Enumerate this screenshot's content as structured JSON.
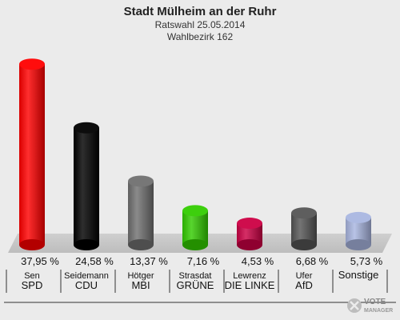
{
  "header": {
    "title": "Stadt Mülheim an der Ruhr",
    "subtitle1": "Ratswahl 25.05.2014",
    "subtitle2": "Wahlbezirk 162"
  },
  "logo": {
    "line1": "VOTE",
    "line2": "MANAGER",
    "icon": "vote-manager-x-icon"
  },
  "chart_data": {
    "type": "bar",
    "title": "Stadt Mülheim an der Ruhr",
    "subtitle": "Ratswahl 25.05.2014 / Wahlbezirk 162",
    "categories": [
      "SPD",
      "CDU",
      "MBI",
      "GRÜNE",
      "DIE LINKE",
      "AfD",
      "Sonstige"
    ],
    "candidates": [
      "Sen",
      "Seidemann",
      "Hötger",
      "Strasdat",
      "Lewrenz",
      "Ufer",
      ""
    ],
    "values": [
      37.95,
      24.58,
      13.37,
      7.16,
      4.53,
      6.68,
      5.73
    ],
    "labels": [
      "37,95 %",
      "24,58 %",
      "13,37 %",
      "7,16 %",
      "4,53 %",
      "6,68 %",
      "5,73 %"
    ],
    "colors": [
      "#ff0000",
      "#000000",
      "#707070",
      "#33cc00",
      "#cc0044",
      "#555555",
      "#a9b6e0"
    ],
    "xlabel": "",
    "ylabel": "",
    "ylim": [
      0,
      40
    ],
    "legend": "none",
    "grid": false
  }
}
